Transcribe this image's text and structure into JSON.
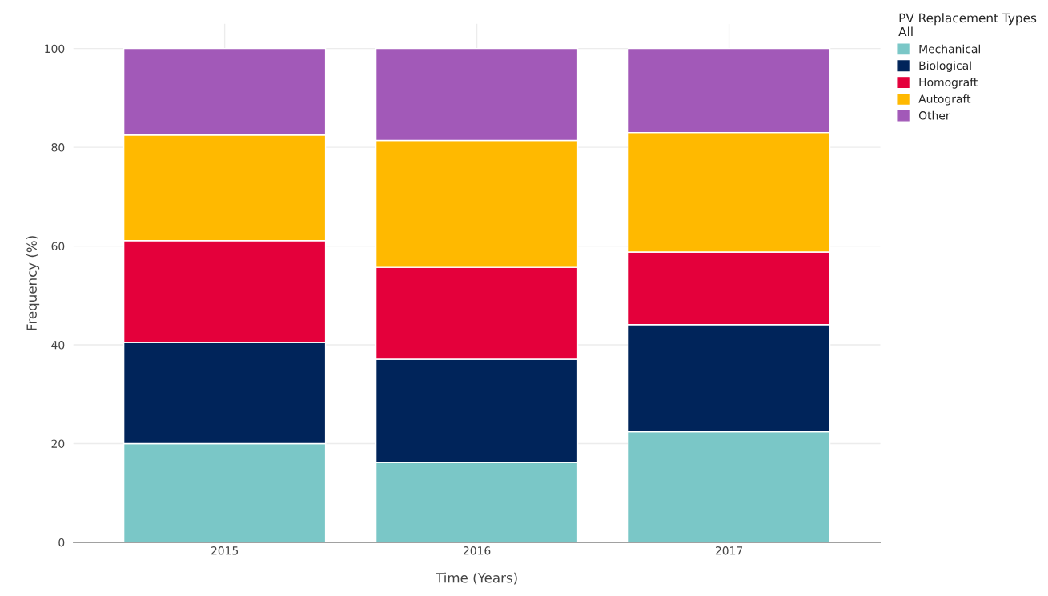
{
  "chart_data": {
    "type": "bar",
    "stacked": true,
    "xlabel": "Time (Years)",
    "ylabel": "Frequency (%)",
    "legend_title": "PV Replacement Types\nAll",
    "categories": [
      "2015",
      "2016",
      "2017"
    ],
    "series": [
      {
        "name": "Mechanical",
        "color": "#7ac7c7",
        "values": [
          20.0,
          16.2,
          22.4
        ]
      },
      {
        "name": "Biological",
        "color": "#00245a",
        "values": [
          20.5,
          20.9,
          21.7
        ]
      },
      {
        "name": "Homograft",
        "color": "#e4003b",
        "values": [
          20.6,
          18.6,
          14.7
        ]
      },
      {
        "name": "Autograft",
        "color": "#ffb900",
        "values": [
          21.4,
          25.7,
          24.2
        ]
      },
      {
        "name": "Other",
        "color": "#a259b8",
        "values": [
          17.5,
          18.6,
          17.0
        ]
      }
    ],
    "ylim": [
      0,
      105
    ],
    "yticks": [
      0,
      20,
      40,
      60,
      80,
      100
    ],
    "grid": true,
    "legend": "top right"
  }
}
